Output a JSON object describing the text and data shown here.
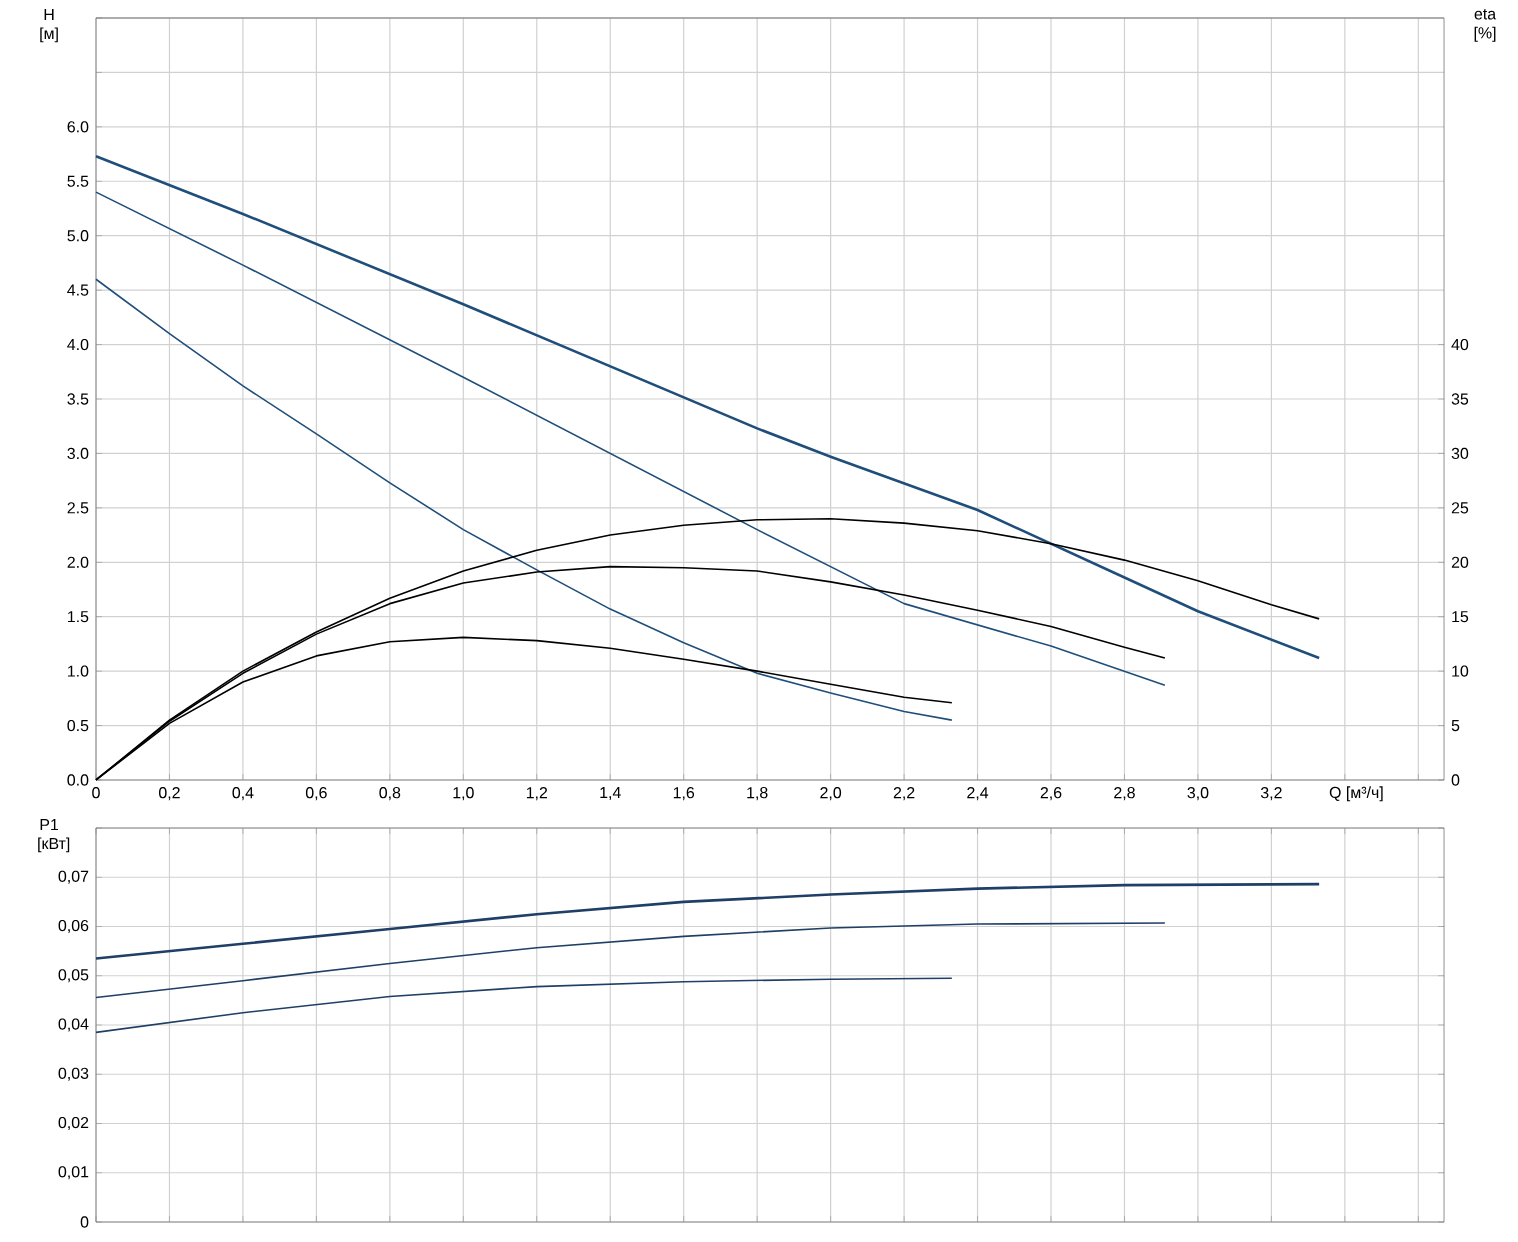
{
  "chart_data": [
    {
      "type": "line",
      "xlabel": "Q [м³/ч]",
      "ylabel": "H [м]",
      "y2label": "eta [%]",
      "grid": true,
      "xlim": [
        0,
        3.67
      ],
      "xticks": [
        0,
        {
          "value": 0.2,
          "label": "0,2"
        },
        {
          "value": 0.4,
          "label": "0,4"
        },
        {
          "value": 0.6,
          "label": "0,6"
        },
        {
          "value": 0.8,
          "label": "0,8"
        },
        {
          "value": 1.0,
          "label": "1,0"
        },
        {
          "value": 1.2,
          "label": "1,2"
        },
        {
          "value": 1.4,
          "label": "1,4"
        },
        {
          "value": 1.6,
          "label": "1,6"
        },
        {
          "value": 1.8,
          "label": "1,8"
        },
        {
          "value": 2.0,
          "label": "2,0"
        },
        {
          "value": 2.2,
          "label": "2,2"
        },
        {
          "value": 2.4,
          "label": "2,4"
        },
        {
          "value": 2.6,
          "label": "2,6"
        },
        {
          "value": 2.8,
          "label": "2,8"
        },
        {
          "value": 3.0,
          "label": "3,0"
        },
        {
          "value": 3.2,
          "label": "3,2"
        },
        {
          "value": 3.4,
          "label": null
        },
        {
          "value": 3.6,
          "label": null
        }
      ],
      "ylim": [
        0,
        7.0
      ],
      "yticks": [
        {
          "value": 0,
          "label": "0.0"
        },
        0.5,
        {
          "value": 1,
          "label": "1.0"
        },
        1.5,
        {
          "value": 2,
          "label": "2.0"
        },
        2.5,
        {
          "value": 3,
          "label": "3.0"
        },
        3.5,
        {
          "value": 4,
          "label": "4.0"
        },
        4.5,
        {
          "value": 5,
          "label": "5.0"
        },
        5.5,
        {
          "value": 6,
          "label": "6.0"
        },
        {
          "value": 6.5,
          "label": null
        },
        {
          "value": 7,
          "label": null
        }
      ],
      "y2lim": [
        0,
        70
      ],
      "y2ticks": [
        0,
        5,
        10,
        15,
        20,
        25,
        30,
        35,
        40
      ],
      "series": [
        {
          "color": "#1f4e7a",
          "x": [
            0,
            0.4,
            1.0,
            1.8,
            2.0,
            2.4,
            2.8,
            3.0,
            3.33
          ],
          "values": [
            5.73,
            5.2,
            4.37,
            3.23,
            2.97,
            2.48,
            1.86,
            1.55,
            1.12
          ]
        },
        {
          "color": "#1f4e7a",
          "x": [
            0,
            0.4,
            1.0,
            1.8,
            2.2,
            2.6,
            2.91
          ],
          "values": [
            5.4,
            4.73,
            3.7,
            2.3,
            1.62,
            1.23,
            0.87
          ]
        },
        {
          "color": "#1f4e7a",
          "x": [
            0,
            0.2,
            0.4,
            0.6,
            0.8,
            1.0,
            1.2,
            1.4,
            1.6,
            1.8,
            2.0,
            2.2,
            2.33
          ],
          "values": [
            4.6,
            4.1,
            3.62,
            3.18,
            2.73,
            2.3,
            1.93,
            1.57,
            1.26,
            0.98,
            0.8,
            0.63,
            0.55
          ]
        },
        {
          "color": "#000000",
          "axis": "y2",
          "x": [
            0,
            0.2,
            0.4,
            0.6,
            0.8,
            1.0,
            1.2,
            1.4,
            1.6,
            1.8,
            2.0,
            2.2,
            2.4,
            2.6,
            2.8,
            3.0,
            3.2,
            3.33
          ],
          "values": [
            0,
            5.5,
            10,
            13.6,
            16.7,
            19.2,
            21.1,
            22.5,
            23.4,
            23.9,
            24.0,
            23.6,
            22.9,
            21.7,
            20.2,
            18.3,
            16.1,
            14.8
          ]
        },
        {
          "color": "#000000",
          "axis": "y2",
          "x": [
            0,
            0.2,
            0.4,
            0.6,
            0.8,
            1.0,
            1.2,
            1.4,
            1.6,
            1.8,
            2.0,
            2.2,
            2.4,
            2.6,
            2.8,
            2.91
          ],
          "values": [
            0,
            5.4,
            9.8,
            13.4,
            16.2,
            18.1,
            19.1,
            19.6,
            19.5,
            19.2,
            18.2,
            17.0,
            15.6,
            14.1,
            12.2,
            11.2
          ]
        },
        {
          "color": "#000000",
          "axis": "y2",
          "x": [
            0,
            0.2,
            0.4,
            0.6,
            0.8,
            1.0,
            1.2,
            1.4,
            1.6,
            1.8,
            2.0,
            2.2,
            2.33
          ],
          "values": [
            0,
            5.2,
            9.0,
            11.4,
            12.7,
            13.1,
            12.8,
            12.1,
            11.1,
            10.0,
            8.8,
            7.6,
            7.1
          ]
        }
      ]
    },
    {
      "type": "line",
      "ylabel": "P1 [кВт]",
      "grid": true,
      "tick_labels": "y",
      "xlim": [
        0,
        3.67
      ],
      "xticks": [
        0,
        0.2,
        0.4,
        0.6,
        0.8,
        1.0,
        1.2,
        1.4,
        1.6,
        1.8,
        2.0,
        2.2,
        2.4,
        2.6,
        2.8,
        3.0,
        3.2,
        3.4,
        3.6
      ],
      "ylim": [
        0,
        0.08
      ],
      "yticks": [
        0,
        {
          "value": 0.01,
          "label": "0,01"
        },
        {
          "value": 0.02,
          "label": "0,02"
        },
        {
          "value": 0.03,
          "label": "0,03"
        },
        {
          "value": 0.04,
          "label": "0,04"
        },
        {
          "value": 0.05,
          "label": "0,05"
        },
        {
          "value": 0.06,
          "label": "0,06"
        },
        {
          "value": 0.07,
          "label": "0,07"
        },
        {
          "value": 0.08,
          "label": null
        }
      ],
      "series": [
        {
          "color": "#1f3f66",
          "x": [
            0,
            0.4,
            0.8,
            1.2,
            1.6,
            2.0,
            2.4,
            2.8,
            3.33
          ],
          "values": [
            0.0535,
            0.0565,
            0.0595,
            0.0625,
            0.065,
            0.0665,
            0.0677,
            0.0684,
            0.0686
          ]
        },
        {
          "color": "#1f3f66",
          "x": [
            0,
            0.4,
            0.8,
            1.2,
            1.6,
            2.0,
            2.4,
            2.91
          ],
          "values": [
            0.0456,
            0.049,
            0.0525,
            0.0557,
            0.058,
            0.0597,
            0.0605,
            0.0607
          ]
        },
        {
          "color": "#1f3f66",
          "x": [
            0,
            0.4,
            0.8,
            1.2,
            1.6,
            2.0,
            2.33
          ],
          "values": [
            0.0385,
            0.0425,
            0.0458,
            0.0478,
            0.0488,
            0.0493,
            0.0495
          ]
        }
      ]
    }
  ]
}
